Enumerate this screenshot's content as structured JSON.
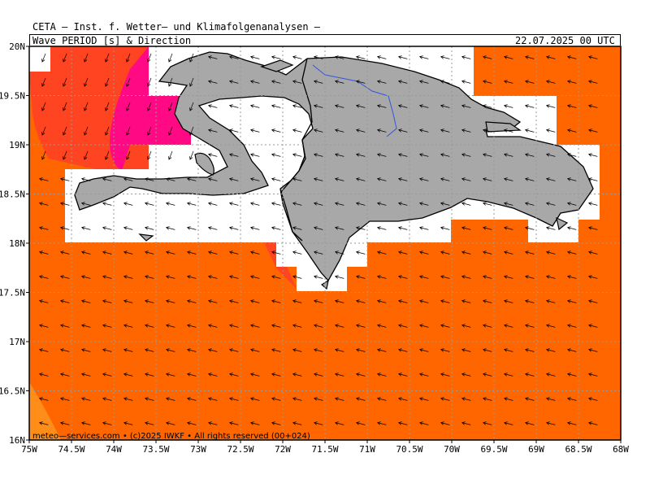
{
  "header": {
    "title": "CETA — Inst. f. Wetter— und Klimafolgenanalysen —",
    "subtitle": "Wave PERIOD [s] & Direction",
    "timestamp": "22.07.2025 00 UTC"
  },
  "map": {
    "lon_range": [
      -75,
      -68
    ],
    "lat_range": [
      16,
      20
    ],
    "lon_ticks": [
      "75W",
      "74.5W",
      "74W",
      "73.5W",
      "73W",
      "72.5W",
      "72W",
      "71.5W",
      "71W",
      "70.5W",
      "70W",
      "69.5W",
      "69W",
      "68.5W",
      "68W"
    ],
    "lat_ticks": [
      "16N",
      "16.5N",
      "17N",
      "17.5N",
      "18N",
      "18.5N",
      "19N",
      "19.5N",
      "20N"
    ],
    "land_color": "#a8a8a8",
    "river_color": "#3355dd",
    "ocean_period_colors": {
      "base": "#ff6600",
      "higher": "#ff4422",
      "highest": "#ff0a84",
      "lower": "#ff8d1a"
    },
    "arrow_direction": "toward WSW (waves from ENE)"
  },
  "credit": "meteo—services.com • (c)2025 IWKF • All rights reserved (00+024)"
}
